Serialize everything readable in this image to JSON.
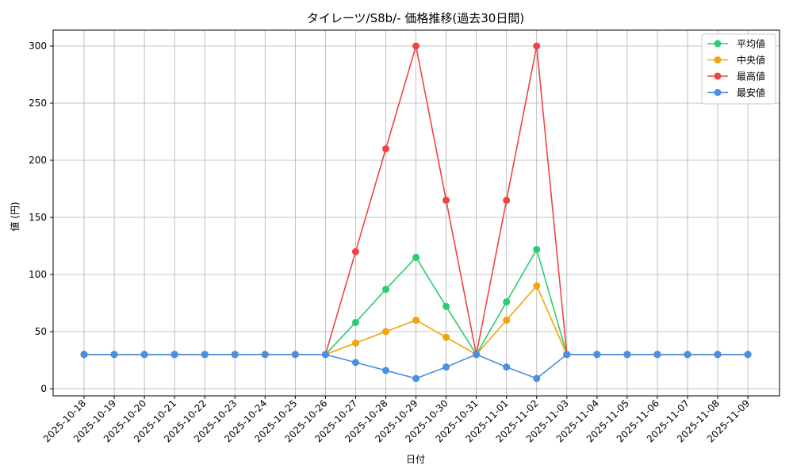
{
  "chart_data": {
    "type": "line",
    "title": "タイレーツ/S8b/- 価格推移(過去30日間)",
    "xlabel": "日付",
    "ylabel": "値 (円)",
    "ylim": [
      0,
      300
    ],
    "yticks": [
      0,
      50,
      100,
      150,
      200,
      250,
      300
    ],
    "grid": true,
    "legend_position": "top-right",
    "x": [
      "2025-10-18",
      "2025-10-19",
      "2025-10-20",
      "2025-10-21",
      "2025-10-22",
      "2025-10-23",
      "2025-10-24",
      "2025-10-25",
      "2025-10-26",
      "2025-10-27",
      "2025-10-28",
      "2025-10-29",
      "2025-10-30",
      "2025-10-31",
      "2025-11-01",
      "2025-11-02",
      "2025-11-03",
      "2025-11-04",
      "2025-11-05",
      "2025-11-06",
      "2025-11-07",
      "2025-11-08",
      "2025-11-09"
    ],
    "series": [
      {
        "name": "平均値",
        "color": "#2ecc71",
        "values": [
          30,
          30,
          30,
          30,
          30,
          30,
          30,
          30,
          30,
          58,
          87,
          115,
          72,
          30,
          76,
          122,
          30,
          30,
          30,
          30,
          30,
          30,
          30
        ]
      },
      {
        "name": "中央値",
        "color": "#f5a30a",
        "values": [
          30,
          30,
          30,
          30,
          30,
          30,
          30,
          30,
          30,
          40,
          50,
          60,
          45,
          30,
          60,
          90,
          30,
          30,
          30,
          30,
          30,
          30,
          30
        ]
      },
      {
        "name": "最高値",
        "color": "#ef4444",
        "values": [
          30,
          30,
          30,
          30,
          30,
          30,
          30,
          30,
          30,
          120,
          210,
          300,
          165,
          30,
          165,
          300,
          30,
          30,
          30,
          30,
          30,
          30,
          30
        ]
      },
      {
        "name": "最安値",
        "color": "#4a90e2",
        "values": [
          30,
          30,
          30,
          30,
          30,
          30,
          30,
          30,
          30,
          23,
          16,
          9,
          19,
          30,
          19,
          9,
          30,
          30,
          30,
          30,
          30,
          30,
          30
        ]
      }
    ]
  }
}
